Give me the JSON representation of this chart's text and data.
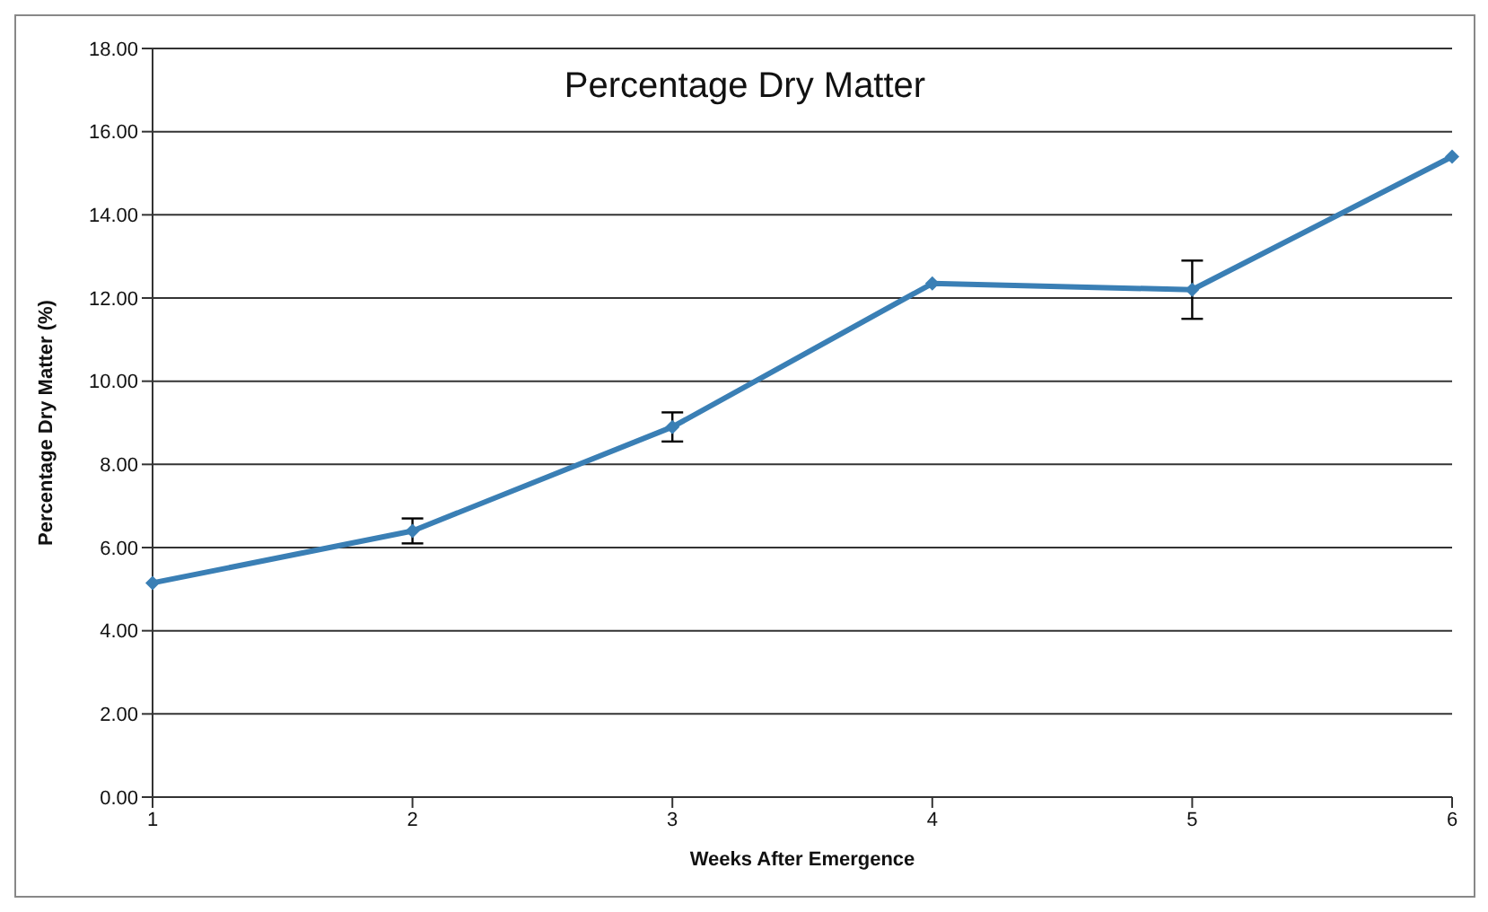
{
  "chart_data": {
    "type": "line",
    "title": "Percentage Dry Matter",
    "xlabel": "Weeks After Emergence",
    "ylabel": "Percentage Dry Matter (%)",
    "categories": [
      "1",
      "2",
      "3",
      "4",
      "5",
      "6"
    ],
    "series": [
      {
        "color": "#3a7fb5",
        "values": [
          5.15,
          6.4,
          8.9,
          12.35,
          12.2,
          15.4
        ],
        "errors": [
          null,
          0.3,
          0.35,
          null,
          0.7,
          null
        ]
      }
    ],
    "ylim": [
      0,
      18
    ],
    "yticks": [
      {
        "value": 0,
        "label": "0.00"
      },
      {
        "value": 2,
        "label": "2.00"
      },
      {
        "value": 4,
        "label": "4.00"
      },
      {
        "value": 6,
        "label": "6.00"
      },
      {
        "value": 8,
        "label": "8.00"
      },
      {
        "value": 10,
        "label": "10.00"
      },
      {
        "value": 12,
        "label": "12.00"
      },
      {
        "value": 14,
        "label": "14.00"
      },
      {
        "value": 16,
        "label": "16.00"
      },
      {
        "value": 18,
        "label": "18.00"
      }
    ],
    "grid": "y",
    "marker": "diamond",
    "line_style": "solid",
    "legend": false
  }
}
